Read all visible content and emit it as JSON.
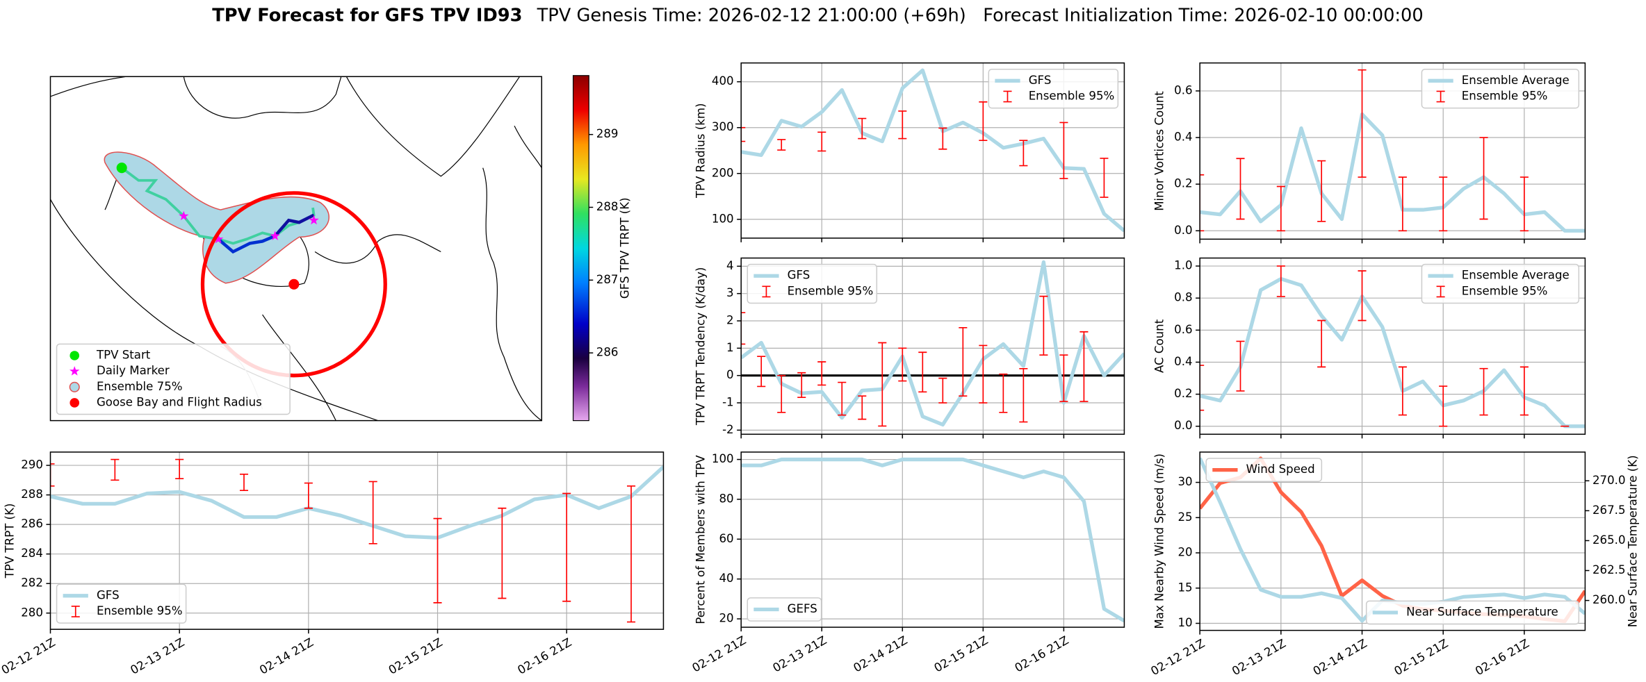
{
  "title": "TPV Forecast for GFS TPV ID93",
  "subtitle": "TPV Genesis Time: 2026-02-12 21:00:00 (+69h)   Forecast Initialization Time: 2026-02-10 00:00:00",
  "chart_data": [
    {
      "type": "map",
      "legend": "lower left",
      "legend_entries": [
        {
          "label": "TPV Start",
          "color": "#00e600",
          "marker": "circle"
        },
        {
          "label": "Daily Marker",
          "color": "#ff00ff",
          "marker": "star"
        },
        {
          "label": "Ensemble 75%",
          "color": "#add8e6",
          "edgecolor": "#e05050",
          "marker": "circle"
        },
        {
          "label": "Goose Bay and Flight Radius",
          "color": "#ff0000",
          "marker": "circle"
        }
      ],
      "colorbar": {
        "label": "GFS TPV TRPT (K)",
        "clim": [
          285.07,
          289.81
        ],
        "ticks": [
          286,
          287,
          288,
          289
        ]
      }
    },
    {
      "type": "line",
      "ylabel": "TPV Radius (km)",
      "grid": true,
      "legend": "upper right",
      "xticklabels": false,
      "categories": [
        "02-12 21Z",
        null,
        null,
        null,
        "02-13 21Z",
        null,
        null,
        null,
        "02-14 21Z",
        null,
        null,
        null,
        "02-15 21Z",
        null,
        null,
        null,
        "02-16 21Z",
        null,
        null,
        null
      ],
      "ylim": [
        59,
        441
      ],
      "yticks": [
        100,
        200,
        300,
        400
      ],
      "series": [
        {
          "name": "GFS",
          "color": "#add8e6",
          "values": [
            247,
            240,
            315,
            302,
            334,
            382,
            288,
            270,
            386,
            425,
            292,
            311,
            288,
            256,
            265,
            276,
            212,
            210,
            112,
            75
          ]
        },
        {
          "name": "Ensemble 95%",
          "color": "#ff0000",
          "lower": [
            270,
            null,
            251,
            null,
            249,
            null,
            276,
            null,
            276,
            null,
            253,
            null,
            272,
            null,
            217,
            null,
            189,
            null,
            148,
            null
          ],
          "upper": [
            300,
            null,
            274,
            null,
            290,
            null,
            320,
            null,
            336,
            null,
            299,
            null,
            356,
            null,
            272,
            null,
            311,
            null,
            233,
            null
          ]
        }
      ]
    },
    {
      "type": "line",
      "ylabel": "Minor Vortices Count",
      "grid": true,
      "legend": "upper right",
      "xticklabels": false,
      "categories": [
        "02-12 21Z",
        null,
        null,
        null,
        "02-13 21Z",
        null,
        null,
        null,
        "02-14 21Z",
        null,
        null,
        null,
        "02-15 21Z",
        null,
        null,
        null,
        "02-16 21Z",
        null,
        null,
        null
      ],
      "ylim": [
        -0.036,
        0.72
      ],
      "yticks": [
        {
          "value": 0,
          "label": "0.0"
        },
        {
          "value": 0.2,
          "label": "0.2"
        },
        {
          "value": 0.4,
          "label": "0.4"
        },
        {
          "value": 0.6,
          "label": "0.6"
        }
      ],
      "series": [
        {
          "name": "Ensemble Average",
          "color": "#add8e6",
          "values": [
            0.08,
            0.07,
            0.17,
            0.04,
            0.11,
            0.44,
            0.16,
            0.05,
            0.5,
            0.41,
            0.09,
            0.09,
            0.1,
            0.18,
            0.23,
            0.16,
            0.07,
            0.08,
            0,
            0
          ]
        },
        {
          "name": "Ensemble 95%",
          "color": "#ff0000",
          "lower": [
            0,
            null,
            0.05,
            null,
            0,
            null,
            0.04,
            null,
            0.23,
            null,
            0,
            null,
            0,
            null,
            0.05,
            null,
            0,
            null,
            null,
            null
          ],
          "upper": [
            0.24,
            null,
            0.31,
            null,
            0.19,
            null,
            0.3,
            null,
            0.69,
            null,
            0.23,
            null,
            0.23,
            null,
            0.4,
            null,
            0.23,
            null,
            null,
            null
          ]
        }
      ]
    },
    {
      "type": "line",
      "ylabel": "TPV TRPT Tendency (K/day)",
      "grid": true,
      "legend": "upper left",
      "xticklabels": false,
      "hline": 0,
      "categories": [
        "02-12 21Z",
        null,
        null,
        null,
        "02-13 21Z",
        null,
        null,
        null,
        "02-14 21Z",
        null,
        null,
        null,
        "02-15 21Z",
        null,
        null,
        null,
        "02-16 21Z",
        null,
        null,
        null
      ],
      "ylim": [
        -2.15,
        4.3
      ],
      "yticks": [
        -2,
        -1,
        0,
        1,
        2,
        3,
        4
      ],
      "series": [
        {
          "name": "GFS",
          "color": "#add8e6",
          "values": [
            0.65,
            1.2,
            -0.3,
            -0.65,
            -0.6,
            -1.55,
            -0.55,
            -0.5,
            0.7,
            -1.5,
            -1.8,
            -0.65,
            0.6,
            1.15,
            0.35,
            4.15,
            -1.0,
            1.45,
            0,
            0.8
          ]
        },
        {
          "name": "Ensemble 95%",
          "color": "#ff0000",
          "lower": [
            1.15,
            -0.4,
            -1.35,
            -0.8,
            -0.35,
            -1.45,
            -1.6,
            -1.85,
            -0.2,
            -0.6,
            -1.0,
            -0.75,
            -1.0,
            -1.35,
            -1.7,
            0.75,
            -0.95,
            -0.95,
            null,
            null
          ],
          "upper": [
            2.3,
            0.7,
            0,
            0.1,
            0.5,
            -0.25,
            -0.75,
            1.2,
            1.0,
            0.85,
            -0.1,
            1.75,
            1.1,
            0.05,
            0.25,
            2.9,
            0.75,
            1.6,
            null,
            null
          ]
        }
      ]
    },
    {
      "type": "line",
      "ylabel": "AC Count",
      "grid": true,
      "legend": "upper right",
      "xticklabels": false,
      "categories": [
        "02-12 21Z",
        null,
        null,
        null,
        "02-13 21Z",
        null,
        null,
        null,
        "02-14 21Z",
        null,
        null,
        null,
        "02-15 21Z",
        null,
        null,
        null,
        "02-16 21Z",
        null,
        null,
        null
      ],
      "ylim": [
        -0.05,
        1.05
      ],
      "yticks": [
        {
          "value": 0,
          "label": "0.0"
        },
        {
          "value": 0.2,
          "label": "0.2"
        },
        {
          "value": 0.4,
          "label": "0.4"
        },
        {
          "value": 0.6,
          "label": "0.6"
        },
        {
          "value": 0.8,
          "label": "0.8"
        },
        {
          "value": 1,
          "label": "1.0"
        }
      ],
      "series": [
        {
          "name": "Ensemble Average",
          "color": "#add8e6",
          "values": [
            0.19,
            0.16,
            0.37,
            0.85,
            0.92,
            0.88,
            0.69,
            0.54,
            0.81,
            0.62,
            0.22,
            0.28,
            0.13,
            0.16,
            0.22,
            0.35,
            0.18,
            0.13,
            0,
            0
          ]
        },
        {
          "name": "Ensemble 95%",
          "color": "#ff0000",
          "lower": [
            0.1,
            null,
            0.22,
            null,
            0.81,
            null,
            0.37,
            null,
            0.66,
            null,
            0.07,
            null,
            0,
            null,
            0.07,
            null,
            0.07,
            null,
            0,
            null
          ],
          "upper": [
            0.38,
            null,
            0.53,
            null,
            1.0,
            null,
            0.66,
            null,
            0.97,
            null,
            0.37,
            null,
            0.25,
            null,
            0.36,
            null,
            0.37,
            null,
            0,
            null
          ]
        }
      ]
    },
    {
      "type": "line",
      "ylabel": "TPV TRPT (K)",
      "grid": true,
      "legend": "lower left",
      "categories": [
        "02-12 21Z",
        null,
        null,
        null,
        "02-13 21Z",
        null,
        null,
        null,
        "02-14 21Z",
        null,
        null,
        null,
        "02-15 21Z",
        null,
        null,
        null,
        "02-16 21Z",
        null,
        null,
        null
      ],
      "ylim": [
        278.9,
        290.9
      ],
      "yticks": [
        280,
        282,
        284,
        286,
        288,
        290
      ],
      "series": [
        {
          "name": "GFS",
          "color": "#add8e6",
          "values": [
            287.9,
            287.4,
            287.4,
            288.1,
            288.2,
            287.6,
            286.5,
            286.5,
            287.1,
            286.6,
            285.9,
            285.2,
            285.1,
            285.9,
            286.6,
            287.7,
            288.0,
            287.1,
            287.9,
            289.9
          ]
        },
        {
          "name": "Ensemble 95%",
          "color": "#ff0000",
          "lower": [
            288.6,
            null,
            289.0,
            null,
            289.1,
            null,
            288.3,
            null,
            287.1,
            null,
            284.7,
            null,
            280.7,
            null,
            281.0,
            null,
            280.8,
            null,
            279.4,
            null
          ],
          "upper": [
            290.1,
            null,
            290.4,
            null,
            290.4,
            null,
            289.4,
            null,
            288.8,
            null,
            288.9,
            null,
            286.4,
            null,
            287.1,
            null,
            288.1,
            null,
            288.6,
            null
          ]
        }
      ]
    },
    {
      "type": "line",
      "ylabel": "Percent of Members with TPV",
      "grid": true,
      "legend": "lower left",
      "categories": [
        "02-12 21Z",
        null,
        null,
        null,
        "02-13 21Z",
        null,
        null,
        null,
        "02-14 21Z",
        null,
        null,
        null,
        "02-15 21Z",
        null,
        null,
        null,
        "02-16 21Z",
        null,
        null,
        null
      ],
      "ylim": [
        15.8,
        103.7
      ],
      "yticks": [
        20,
        40,
        60,
        80,
        100
      ],
      "series": [
        {
          "name": "GEFS",
          "color": "#add8e6",
          "values": [
            97,
            97,
            100,
            100,
            100,
            100,
            100,
            97,
            100,
            100,
            100,
            100,
            97,
            94,
            91,
            94,
            91,
            79,
            25,
            19
          ]
        }
      ]
    },
    {
      "type": "line",
      "ylabel": "Max Nearby Wind Speed (m/s)",
      "y2label": "Near Surface Temperature (K)",
      "grid": true,
      "legend": "upper left",
      "ylabel_color": "#ff6347",
      "y2label_color": "#4169e1",
      "categories": [
        "02-12 21Z",
        null,
        null,
        null,
        "02-13 21Z",
        null,
        null,
        null,
        "02-14 21Z",
        null,
        null,
        null,
        "02-15 21Z",
        null,
        null,
        null,
        "02-16 21Z",
        null,
        null,
        null
      ],
      "ylim": [
        9.0,
        34.3
      ],
      "yticks": [
        10,
        15,
        20,
        25,
        30
      ],
      "y2lim": [
        257.5,
        272.4
      ],
      "y2ticks": [
        {
          "value": 260,
          "label": "260.0"
        },
        {
          "value": 262.5,
          "label": "262.5"
        },
        {
          "value": 265,
          "label": "265.0"
        },
        {
          "value": 267.5,
          "label": "267.5"
        },
        {
          "value": 270,
          "label": "270.0"
        }
      ],
      "series": [
        {
          "name": "Wind Speed",
          "color": "#ff6347",
          "values": [
            26.3,
            29.9,
            30.7,
            33.4,
            28.6,
            25.8,
            21,
            13.9,
            16.1,
            13.9,
            12.5,
            12,
            11.8,
            11.5,
            11.3,
            11.2,
            11.0,
            10.6,
            10.3,
            14.6
          ]
        },
        {
          "name": "Near Surface Temperature",
          "color": "#add8e6",
          "axis": "y2",
          "legend": "lower right",
          "values": [
            271.9,
            268.2,
            264.3,
            260.9,
            260.3,
            260.3,
            260.6,
            260.2,
            258.3,
            260.0,
            259.8,
            259.7,
            259.9,
            260.3,
            260.4,
            260.5,
            260.2,
            260.5,
            260.3,
            258.9
          ]
        }
      ]
    }
  ]
}
